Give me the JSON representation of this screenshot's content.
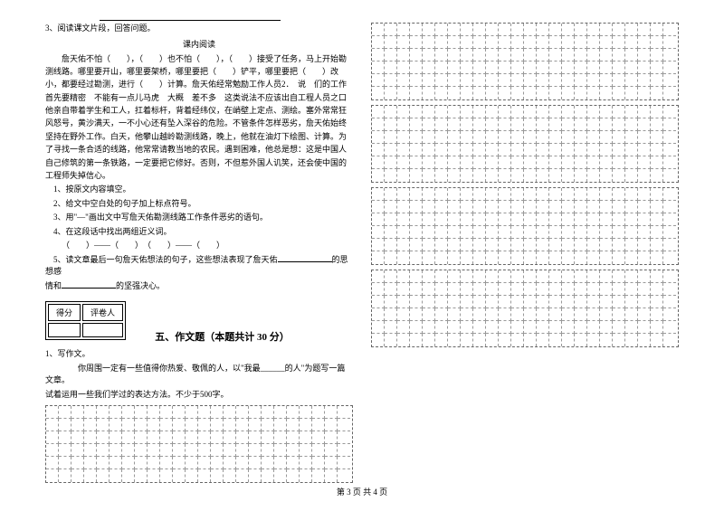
{
  "q3": {
    "number": "3、阅读课文片段，回答问题。",
    "title": "课内阅读",
    "para": "　　詹天佑不怕（　　），（　　）也不怕（　　），（　　）接受了任务，马上开始勘测线路。哪里要开山，哪里要架桥，哪里要把（　　）铲平，哪里要把（　　）改小，都要经过勘测，进行（　　）计算。詹天佑经常勉励工作人员2．　说　们的工作首先要精密　不能有一点儿马虎　大概　差不多　这类说法不应该出自工程人员之口　他亲自带着学生和工人，扛着标杆，背着经纬仪，在峭壁上定点、测绘。塞外常常狂风怒号，黄沙满天，一不小心还有坠入深谷的危险。不管条件怎样恶劣，詹天佑始终坚持在野外工作。白天，他攀山越岭勘测线路，晚上，他就在油灯下绘图、计算。为了寻找一条合适的线路，他常常请教当地的农民。遇到困难，他总是想：这是中国人自己修筑的第一条铁路，一定要把它修好。否则，不但惹外国人讥笑，还会使中国的工程师失掉信心。",
    "sub1": "1、按原文内容填空。",
    "sub2": "2、给文中空白处的句子加上标点符号。",
    "sub3": "3、用\"—\"画出文中写詹天佑勘测线路工作条件恶劣的语句。",
    "sub4": "4、在这段话中找出两组近义词。",
    "sub4_blanks": "（　　）——（　　）　（　　）——（　　）",
    "sub5_a": "5、读文章最后一句詹天佑想法的句子，这些想法表现了詹天佑",
    "sub5_b": "的思想感",
    "sub5_c": "情和",
    "sub5_d": "的坚强决心。"
  },
  "score_table": {
    "col1": "得分",
    "col2": "评卷人"
  },
  "section5": {
    "title": "五、作文题（本题共计 30 分）",
    "q1": "1、写作文。",
    "desc1": "　　你周围一定有一些值得你热爱、敬佩的人，以\"我最______的人\"为题写一篇文章。",
    "desc2": "试着运用一些我们学过的表达方法。不少于500字。"
  },
  "footer": "第 3 页 共 4 页",
  "grid": {
    "left_cols": 24,
    "left_rows_1": 6,
    "right_cols": 24,
    "right_rows_1": 6,
    "right_rows_2": 6,
    "right_rows_3": 6,
    "right_rows_4": 6,
    "full_cols": 50,
    "full_rows": 10
  },
  "style": {
    "bg": "#ffffff",
    "text": "#000000",
    "dash": "#999999"
  }
}
